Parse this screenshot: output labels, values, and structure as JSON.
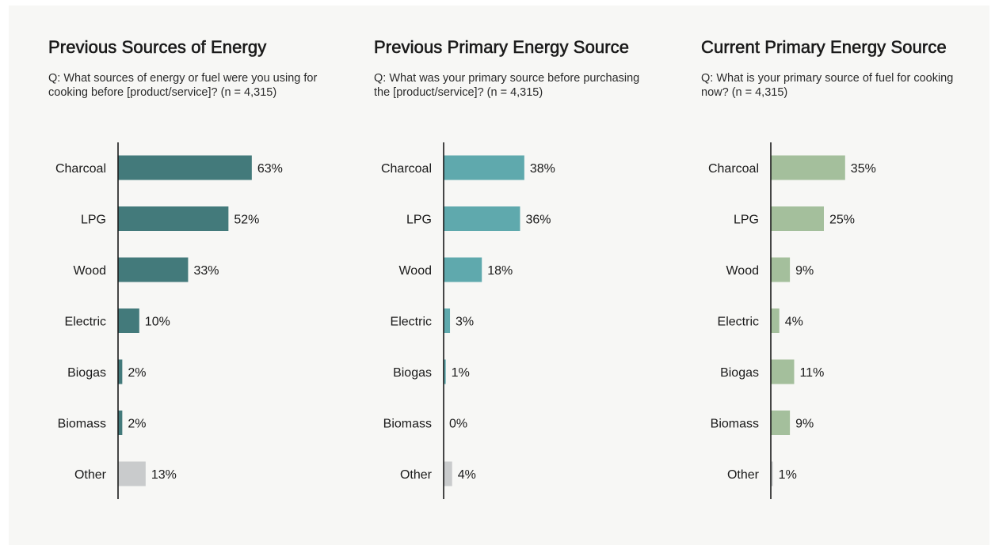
{
  "chart_data": [
    {
      "type": "bar",
      "orientation": "horizontal",
      "title": "Previous Sources of Energy",
      "subtitle": "Q: What sources of energy or fuel were you using for cooking before [product/service]? (n = 4,315)",
      "categories": [
        "Charcoal",
        "LPG",
        "Wood",
        "Electric",
        "Biogas",
        "Biomass",
        "Other"
      ],
      "values": [
        63,
        52,
        33,
        10,
        2,
        2,
        13
      ],
      "value_labels": [
        "63%",
        "52%",
        "33%",
        "10%",
        "2%",
        "2%",
        "13%"
      ],
      "colors": [
        "#437a7b",
        "#437a7b",
        "#437a7b",
        "#437a7b",
        "#437a7b",
        "#437a7b",
        "#c9cbcc"
      ],
      "xlim": [
        0,
        100
      ],
      "grid": false,
      "legend": "none"
    },
    {
      "type": "bar",
      "orientation": "horizontal",
      "title": "Previous Primary Energy Source",
      "subtitle": "Q: What was your primary source before purchasing the [product/service]? (n = 4,315)",
      "categories": [
        "Charcoal",
        "LPG",
        "Wood",
        "Electric",
        "Biogas",
        "Biomass",
        "Other"
      ],
      "values": [
        38,
        36,
        18,
        3,
        1,
        0,
        4
      ],
      "value_labels": [
        "38%",
        "36%",
        "18%",
        "3%",
        "1%",
        "0%",
        "4%"
      ],
      "colors": [
        "#5fa9ad",
        "#5fa9ad",
        "#5fa9ad",
        "#5fa9ad",
        "#5fa9ad",
        "#5fa9ad",
        "#c9cbcc"
      ],
      "xlim": [
        0,
        100
      ],
      "grid": false,
      "legend": "none"
    },
    {
      "type": "bar",
      "orientation": "horizontal",
      "title": "Current Primary Energy Source",
      "subtitle": "Q: What is your primary source of fuel for cooking now? (n = 4,315)",
      "categories": [
        "Charcoal",
        "LPG",
        "Wood",
        "Electric",
        "Biogas",
        "Biomass",
        "Other"
      ],
      "values": [
        35,
        25,
        9,
        4,
        11,
        9,
        1
      ],
      "value_labels": [
        "35%",
        "25%",
        "9%",
        "4%",
        "11%",
        "9%",
        "1%"
      ],
      "colors": [
        "#a4bf9c",
        "#a4bf9c",
        "#a4bf9c",
        "#a4bf9c",
        "#a4bf9c",
        "#a4bf9c",
        "#c9cbcc"
      ],
      "xlim": [
        0,
        100
      ],
      "grid": false,
      "legend": "none"
    }
  ]
}
